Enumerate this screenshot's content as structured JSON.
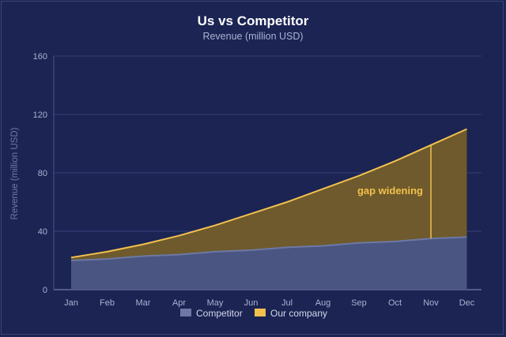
{
  "chart_data": {
    "type": "area",
    "title": "Us vs Competitor",
    "subtitle": "Revenue (million USD)",
    "xlabel": "",
    "ylabel": "Revenue (million USD)",
    "categories": [
      "Jan",
      "Feb",
      "Mar",
      "Apr",
      "May",
      "Jun",
      "Jul",
      "Aug",
      "Sep",
      "Oct",
      "Nov",
      "Dec"
    ],
    "ylim": [
      0,
      160
    ],
    "yticks": [
      0,
      40,
      80,
      120,
      160
    ],
    "grid": true,
    "legend_position": "bottom",
    "series": [
      {
        "name": "Competitor",
        "values": [
          20,
          21,
          23,
          24,
          26,
          27,
          29,
          30,
          32,
          33,
          35,
          36
        ],
        "color": "#4a5582",
        "line_color": "#6d78a6"
      },
      {
        "name": "Our company",
        "values": [
          22,
          26,
          31,
          37,
          44,
          52,
          60,
          69,
          78,
          88,
          99,
          110
        ],
        "color": "#6e5a2c",
        "line_color": "#f2c14e"
      }
    ],
    "annotation": {
      "text": "gap widening",
      "x_category": "Nov",
      "from_value": 35,
      "to_value": 99,
      "color": "#f2c14e"
    }
  }
}
